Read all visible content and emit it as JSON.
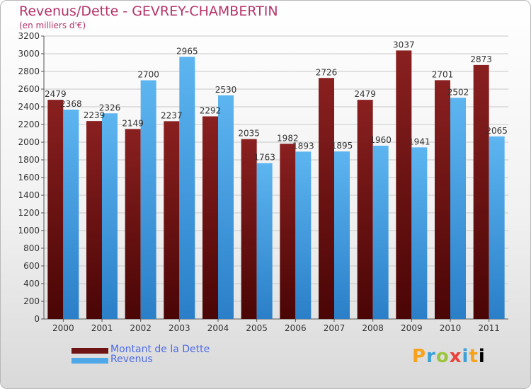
{
  "header": {
    "title": "Revenus/Dette - GEVREY-CHAMBERTIN",
    "subtitle": "(en milliers d'€)"
  },
  "colors": {
    "dette": "#6e1414",
    "revenus": "#4ea8e8",
    "title": "#b5336a",
    "axis_text": "#333333",
    "grid": "#c8c8c8"
  },
  "legend": {
    "items": [
      {
        "label": "Montant de la Dette",
        "color": "#6e1414"
      },
      {
        "label": "Revenus",
        "color": "#4ea8e8"
      }
    ]
  },
  "logo": {
    "text": "Proxiti"
  },
  "chart_data": {
    "type": "bar",
    "title": "Revenus/Dette - GEVREY-CHAMBERTIN",
    "subtitle": "(en milliers d'€)",
    "xlabel": "",
    "ylabel": "",
    "ylim": [
      0,
      3200
    ],
    "yticks": [
      0,
      200,
      400,
      600,
      800,
      1000,
      1200,
      1400,
      1600,
      1800,
      2000,
      2200,
      2400,
      2600,
      2800,
      3000,
      3200
    ],
    "grid": true,
    "legend_position": "bottom-left",
    "categories": [
      "2000",
      "2001",
      "2002",
      "2003",
      "2004",
      "2005",
      "2006",
      "2007",
      "2008",
      "2009",
      "2010",
      "2011"
    ],
    "series": [
      {
        "name": "Montant de la Dette",
        "color": "#6e1414",
        "values": [
          2479,
          2239,
          2149,
          2237,
          2292,
          2035,
          1982,
          2726,
          2479,
          3037,
          2701,
          2873
        ]
      },
      {
        "name": "Revenus",
        "color": "#4ea8e8",
        "values": [
          2368,
          2326,
          2700,
          2965,
          2530,
          1763,
          1893,
          1895,
          1960,
          1941,
          2502,
          2065
        ]
      }
    ]
  }
}
